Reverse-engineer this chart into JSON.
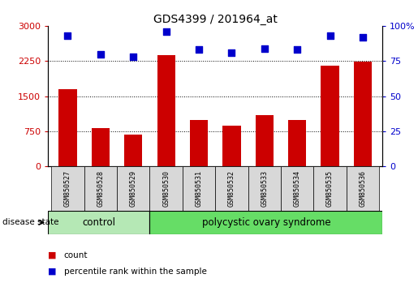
{
  "title": "GDS4399 / 201964_at",
  "samples": [
    "GSM850527",
    "GSM850528",
    "GSM850529",
    "GSM850530",
    "GSM850531",
    "GSM850532",
    "GSM850533",
    "GSM850534",
    "GSM850535",
    "GSM850536"
  ],
  "counts": [
    1650,
    820,
    680,
    2380,
    1000,
    870,
    1100,
    1000,
    2150,
    2230
  ],
  "percentiles": [
    93,
    80,
    78,
    96,
    83,
    81,
    84,
    83,
    93,
    92
  ],
  "bar_color": "#cc0000",
  "dot_color": "#0000cc",
  "ylim_left": [
    0,
    3000
  ],
  "ylim_right": [
    0,
    100
  ],
  "yticks_left": [
    0,
    750,
    1500,
    2250,
    3000
  ],
  "yticks_right": [
    0,
    25,
    50,
    75,
    100
  ],
  "grid_lines": [
    750,
    1500,
    2250
  ],
  "control_samples": 3,
  "control_label": "control",
  "disease_label": "polycystic ovary syndrome",
  "disease_state_label": "disease state",
  "legend_count": "count",
  "legend_percentile": "percentile rank within the sample",
  "control_color": "#b5e8b5",
  "disease_color": "#66dd66",
  "left_color": "#cc0000",
  "right_color": "#0000cc",
  "bar_width": 0.55,
  "figsize": [
    5.15,
    3.54
  ],
  "dpi": 100
}
